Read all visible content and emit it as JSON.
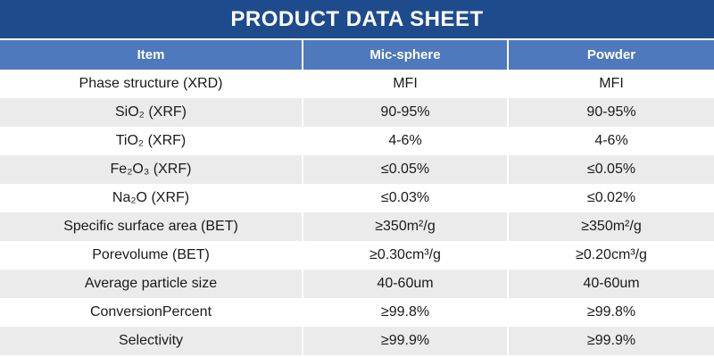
{
  "colors": {
    "title_bg": "#1E4B8C",
    "header_bg": "#4E79BD",
    "row_alt_bg": "#EBEBEB",
    "text": "#1a1a1a",
    "header_text": "#ffffff"
  },
  "title": "PRODUCT DATA SHEET",
  "table": {
    "columns": [
      "Item",
      "Mic-sphere",
      "Powder"
    ],
    "rows": [
      {
        "item": "Phase structure (XRD)",
        "mic_sphere": "MFI",
        "powder": "MFI"
      },
      {
        "item": "SiO₂ (XRF)",
        "mic_sphere": "90-95%",
        "powder": "90-95%"
      },
      {
        "item": "TiO₂ (XRF)",
        "mic_sphere": "4-6%",
        "powder": "4-6%"
      },
      {
        "item": "Fe₂O₃ (XRF)",
        "mic_sphere": "≤0.05%",
        "powder": "≤0.05%"
      },
      {
        "item": "Na₂O (XRF)",
        "mic_sphere": "≤0.03%",
        "powder": "≤0.02%"
      },
      {
        "item": "Specific surface area (BET)",
        "mic_sphere": "≥350m²/g",
        "powder": "≥350m²/g"
      },
      {
        "item": "Porevolume (BET)",
        "mic_sphere": "≥0.30cm³/g",
        "powder": "≥0.20cm³/g"
      },
      {
        "item": "Average particle size",
        "mic_sphere": "40-60um",
        "powder": "40-60um"
      },
      {
        "item": "ConversionPercent",
        "mic_sphere": "≥99.8%",
        "powder": "≥99.8%"
      },
      {
        "item": "Selectivity",
        "mic_sphere": "≥99.9%",
        "powder": "≥99.9%"
      }
    ]
  }
}
